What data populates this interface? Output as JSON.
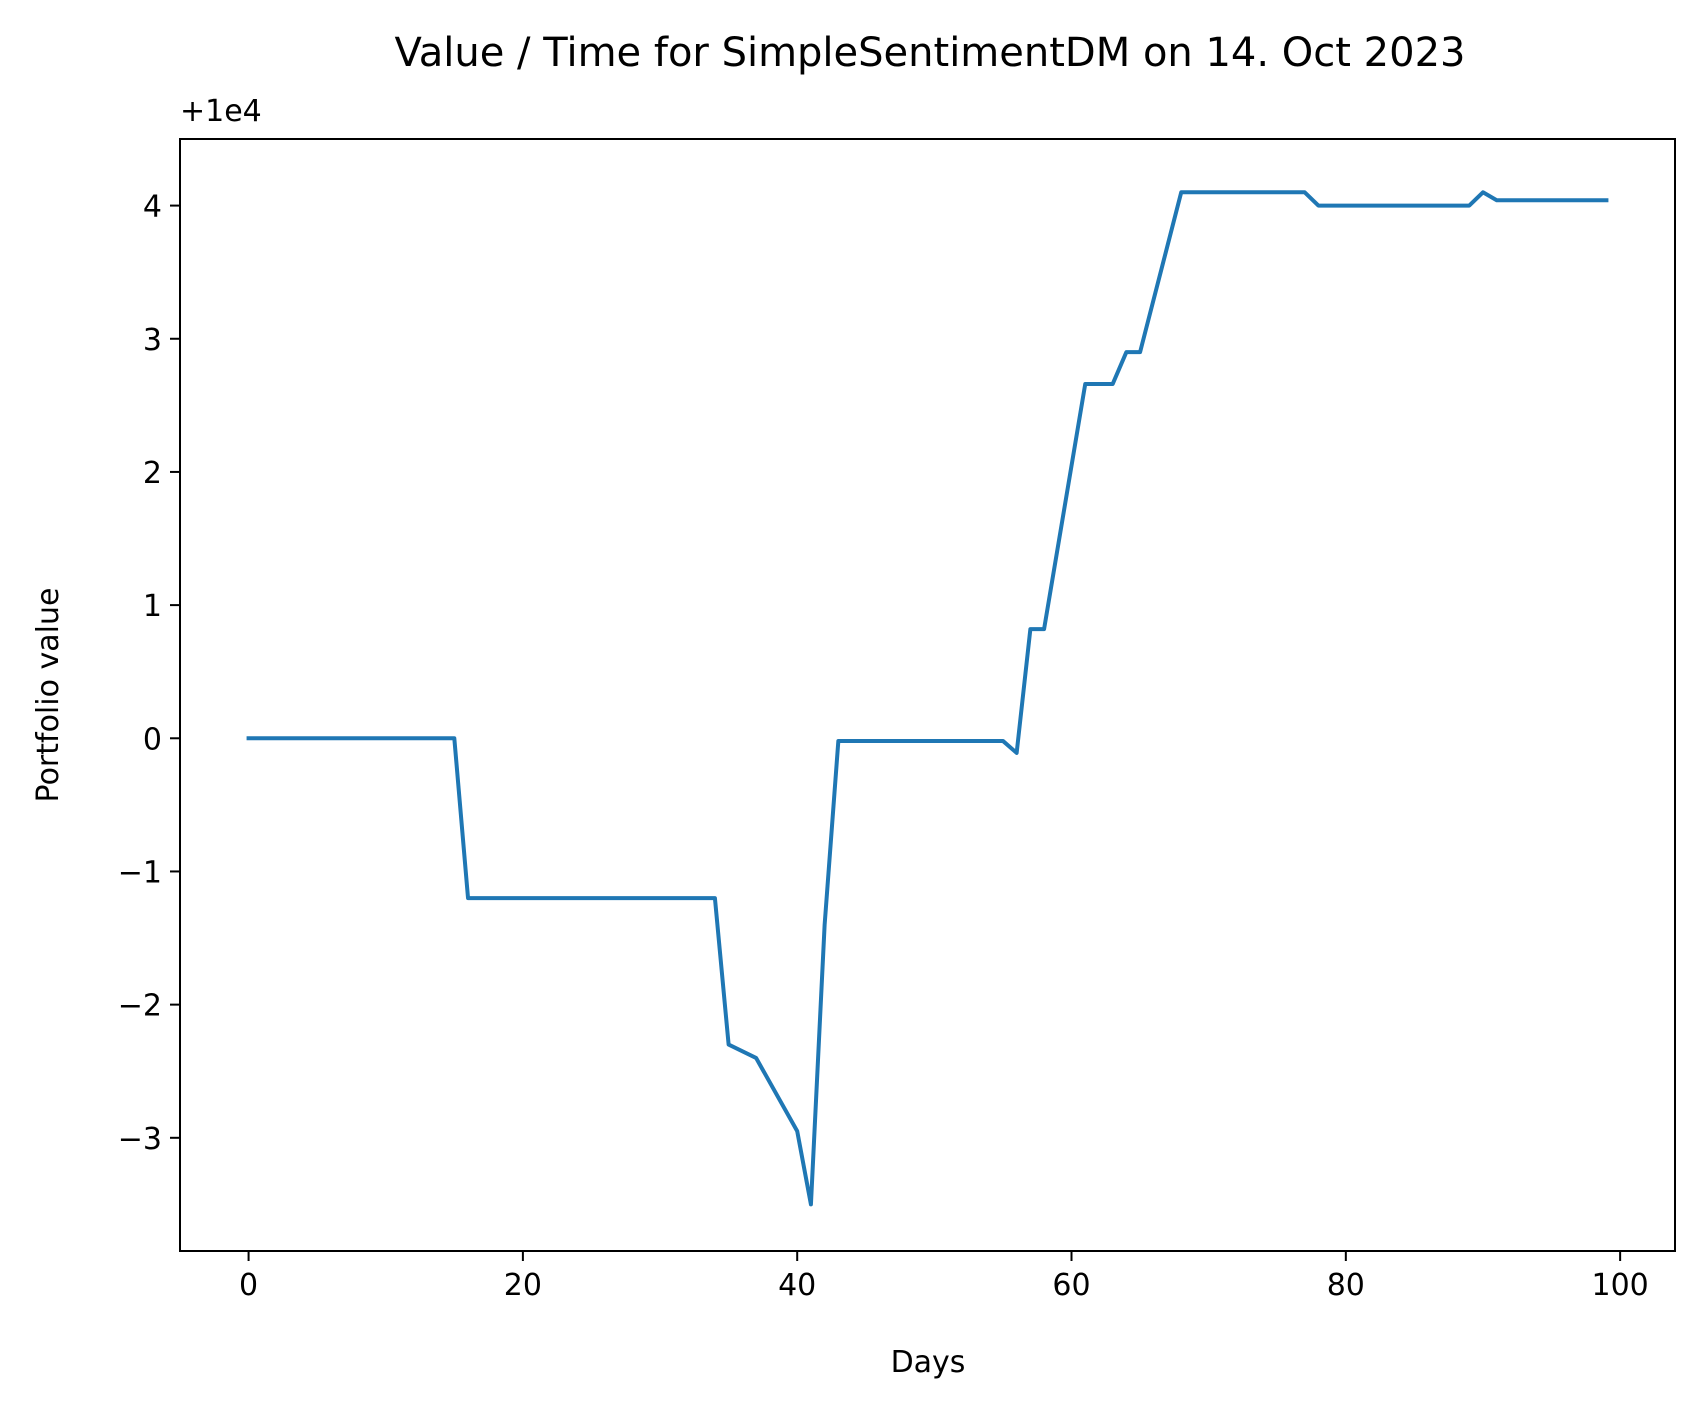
{
  "chart_data": {
    "type": "line",
    "title": "Value / Time for SimpleSentimentDM on 14. Oct 2023",
    "xlabel": "Days",
    "ylabel": "Portfolio value",
    "offset_label": "+1e4",
    "xlim": [
      -5,
      104
    ],
    "ylim": [
      -3.85,
      4.5
    ],
    "xticks": [
      0,
      20,
      40,
      60,
      80,
      100
    ],
    "xtick_labels": [
      "0",
      "20",
      "40",
      "60",
      "80",
      "100"
    ],
    "yticks": [
      -3,
      -2,
      -1,
      0,
      1,
      2,
      3,
      4
    ],
    "ytick_labels": [
      "−3",
      "−2",
      "−1",
      "0",
      "1",
      "2",
      "3",
      "4"
    ],
    "grid": false,
    "series": [
      {
        "color": "#1f77b4",
        "points": [
          [
            0,
            0
          ],
          [
            15,
            0
          ],
          [
            16,
            -1.2
          ],
          [
            34,
            -1.2
          ],
          [
            35,
            -2.3
          ],
          [
            37,
            -2.4
          ],
          [
            40,
            -2.95
          ],
          [
            41,
            -3.5
          ],
          [
            42,
            -1.4
          ],
          [
            43,
            -0.02
          ],
          [
            55,
            -0.02
          ],
          [
            56,
            -0.11
          ],
          [
            57,
            0.82
          ],
          [
            58,
            0.82
          ],
          [
            61,
            2.66
          ],
          [
            63,
            2.66
          ],
          [
            64,
            2.9
          ],
          [
            65,
            2.9
          ],
          [
            68,
            4.1
          ],
          [
            77,
            4.1
          ],
          [
            78,
            4.0
          ],
          [
            89,
            4.0
          ],
          [
            90,
            4.1
          ],
          [
            91,
            4.04
          ],
          [
            99,
            4.04
          ]
        ]
      }
    ]
  }
}
